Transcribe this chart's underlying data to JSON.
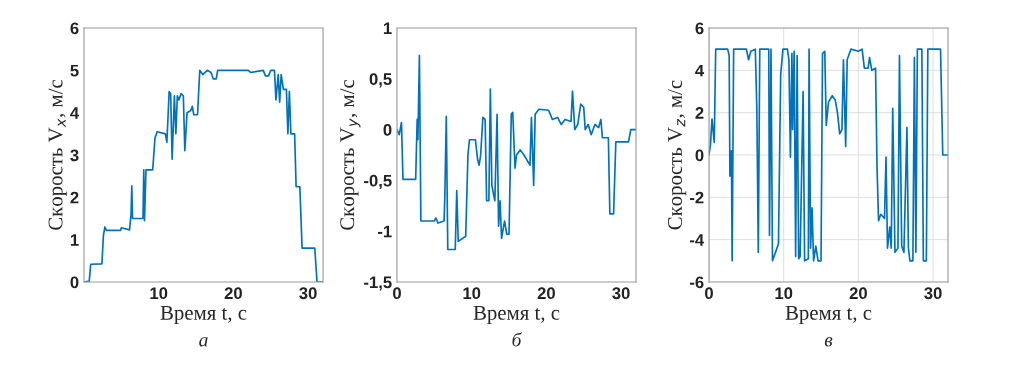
{
  "chart_data": [
    {
      "type": "line",
      "xlabel": "Время t, с",
      "ylabel": "Скорость V$_{x}$, м/с",
      "annotations": [
        "а"
      ],
      "xlim": [
        0,
        32
      ],
      "xticks": [
        10,
        20,
        30
      ],
      "ylim": [
        0,
        6
      ],
      "yticks": [
        0,
        1,
        2,
        3,
        4,
        5,
        6
      ],
      "grid": false,
      "series": [
        {
          "color": "#0072bd",
          "x": [
            0,
            0.7,
            0.9,
            2.4,
            2.6,
            2.8,
            3.0,
            4.9,
            5.0,
            6.1,
            6.3,
            6.4,
            6.5,
            7.9,
            8.0,
            8.1,
            8.3,
            9.2,
            9.5,
            9.8,
            10.9,
            11.1,
            11.4,
            11.6,
            11.8,
            12.1,
            12.3,
            12.5,
            12.7,
            13.0,
            13.3,
            13.5,
            13.8,
            14.3,
            14.5,
            14.7,
            15.2,
            15.5,
            15.9,
            16.5,
            17.0,
            17.3,
            17.7,
            17.9,
            22.0,
            22.3,
            24.0,
            24.3,
            24.7,
            25.0,
            25.5,
            25.7,
            26.0,
            26.2,
            26.4,
            26.7,
            27.1,
            27.3,
            27.5,
            27.7,
            28.2,
            28.4,
            28.9,
            29.2,
            30.9,
            31.2,
            32
          ],
          "values": [
            0,
            0.02,
            0.42,
            0.43,
            1.1,
            1.3,
            1.22,
            1.22,
            1.28,
            1.23,
            1.6,
            2.27,
            1.5,
            1.5,
            2.65,
            1.45,
            2.65,
            2.65,
            3.4,
            3.55,
            3.5,
            3.3,
            4.5,
            4.45,
            2.9,
            4.4,
            3.5,
            4.4,
            4.3,
            4.45,
            4.4,
            3.1,
            4.0,
            4.05,
            4.15,
            3.95,
            3.95,
            5.0,
            4.9,
            5.0,
            4.95,
            4.8,
            4.8,
            5.0,
            5.0,
            4.95,
            5.0,
            4.87,
            4.87,
            5.0,
            5.0,
            4.3,
            4.9,
            4.25,
            4.9,
            4.55,
            4.55,
            3.5,
            4.5,
            3.5,
            3.5,
            2.25,
            2.25,
            0.8,
            0.8,
            0.0,
            0.0
          ]
        }
      ]
    },
    {
      "type": "line",
      "xlabel": "Время t, с",
      "ylabel": "Скорость V$_{y}$, м/с",
      "annotations": [
        "б"
      ],
      "xlim": [
        0,
        32
      ],
      "xticks": [
        0,
        10,
        20,
        30
      ],
      "ylim": [
        -1.5,
        1
      ],
      "yticks": [
        {
          "value": -1.5,
          "label": "-1,5"
        },
        {
          "value": -1,
          "label": "-1"
        },
        {
          "value": -0.5,
          "label": "-0,5"
        },
        {
          "value": 0,
          "label": "0"
        },
        {
          "value": 0.5,
          "label": "0,5"
        },
        {
          "value": 1,
          "label": "1"
        }
      ],
      "grid": false,
      "series": [
        {
          "color": "#0072bd",
          "x": [
            0,
            0.3,
            0.6,
            0.8,
            2.5,
            2.7,
            2.8,
            3.0,
            3.2,
            5.0,
            5.2,
            5.5,
            6.3,
            6.4,
            6.6,
            6.8,
            7.8,
            8.0,
            8.2,
            9.2,
            9.5,
            9.7,
            10.5,
            10.8,
            11.0,
            11.2,
            11.5,
            11.8,
            12.0,
            12.3,
            12.5,
            12.7,
            13.1,
            13.4,
            13.6,
            13.8,
            14.0,
            14.4,
            14.7,
            15.0,
            15.3,
            15.5,
            15.8,
            16.0,
            16.5,
            17.0,
            17.8,
            18.0,
            18.3,
            18.5,
            19.0,
            20.3,
            20.8,
            21.5,
            22.0,
            22.5,
            23.3,
            23.5,
            23.8,
            24.2,
            24.6,
            25.0,
            25.2,
            25.6,
            26.0,
            26.5,
            27.0,
            27.3,
            27.5,
            28.3,
            28.5,
            29.0,
            29.3,
            31.0,
            31.3,
            32
          ],
          "values": [
            0,
            -0.05,
            0.07,
            -0.49,
            -0.49,
            0.1,
            -0.1,
            0.73,
            -0.9,
            -0.9,
            -0.87,
            -0.92,
            -0.9,
            -0.67,
            0.13,
            -1.18,
            -1.18,
            -0.6,
            -1.1,
            -1.05,
            -0.25,
            -0.1,
            -0.1,
            -0.3,
            -0.35,
            -0.25,
            0.12,
            0.1,
            -0.7,
            -0.7,
            0.4,
            -0.55,
            -0.7,
            0.15,
            -0.95,
            -0.7,
            -1.07,
            -0.9,
            -1.03,
            -1.03,
            0.15,
            0.17,
            -0.38,
            -0.25,
            -0.2,
            -0.25,
            -0.35,
            0.12,
            -0.55,
            0.15,
            0.2,
            0.19,
            0.1,
            0.12,
            0.05,
            0.1,
            0.08,
            0.38,
            0.0,
            0.05,
            0.25,
            0.22,
            0.0,
            0.05,
            -0.05,
            0.05,
            0.02,
            0.1,
            -0.08,
            -0.08,
            -0.83,
            -0.83,
            -0.12,
            -0.12,
            0.0,
            0.0
          ]
        }
      ]
    },
    {
      "type": "line",
      "xlabel": "Время t, с",
      "ylabel": "Скорость V$_{z}$, м/с",
      "annotations": [
        "в"
      ],
      "xlim": [
        0,
        32
      ],
      "xticks": [
        0,
        10,
        20,
        30
      ],
      "ylim": [
        -6,
        6
      ],
      "yticks": [
        -6,
        -4,
        -2,
        0,
        2,
        4,
        6
      ],
      "grid": true,
      "series": [
        {
          "color": "#0072bd",
          "x": [
            0,
            0.2,
            0.4,
            0.7,
            0.9,
            2.5,
            2.7,
            2.8,
            3.0,
            3.1,
            3.3,
            5.0,
            5.3,
            5.6,
            6.2,
            6.4,
            6.6,
            6.8,
            8.0,
            8.1,
            8.3,
            8.5,
            9.0,
            9.3,
            9.6,
            9.9,
            10.5,
            10.7,
            10.9,
            11.1,
            11.2,
            11.4,
            11.6,
            11.8,
            12.0,
            12.2,
            12.6,
            12.8,
            13.3,
            13.4,
            13.6,
            13.8,
            14.0,
            14.3,
            14.6,
            15.0,
            15.2,
            15.5,
            15.7,
            16.0,
            16.5,
            16.9,
            17.2,
            17.5,
            17.8,
            18.0,
            18.3,
            18.5,
            19.0,
            20.0,
            20.5,
            20.8,
            21.3,
            21.5,
            21.8,
            22.3,
            22.5,
            22.7,
            23.0,
            23.5,
            23.7,
            23.9,
            24.2,
            24.4,
            24.6,
            24.9,
            25.3,
            25.5,
            25.8,
            26.1,
            26.5,
            26.7,
            26.9,
            27.3,
            27.5,
            27.7,
            27.9,
            28.5,
            28.7,
            29.1,
            29.3,
            31.0,
            31.3,
            32
          ],
          "values": [
            0,
            0.5,
            1.7,
            0.6,
            5.0,
            5.0,
            4.7,
            -1.0,
            0.2,
            -5.0,
            5.0,
            5.0,
            4.5,
            4.9,
            5.0,
            2.3,
            -4.6,
            5.0,
            5.0,
            -3.8,
            5.0,
            -5.0,
            -4.5,
            -4.2,
            3.8,
            5.0,
            5.0,
            4.5,
            -0.1,
            4.8,
            1.2,
            4.9,
            -4.8,
            4.7,
            -4.9,
            -4.8,
            3.0,
            -5.0,
            -4.9,
            5.0,
            -4.4,
            -2.5,
            -5.0,
            -4.3,
            -5.0,
            -5.0,
            4.8,
            4.9,
            1.4,
            2.5,
            2.8,
            2.6,
            2.0,
            1.0,
            1.2,
            4.5,
            0.4,
            4.5,
            5.0,
            4.9,
            5.0,
            4.1,
            4.1,
            4.6,
            4.0,
            4.1,
            -0.6,
            -3.1,
            -2.8,
            -3.0,
            -0.1,
            -4.4,
            -3.4,
            -4.4,
            2.2,
            -4.6,
            -4.4,
            4.7,
            -4.3,
            -4.6,
            1.3,
            -4.4,
            -5.0,
            -5.0,
            4.6,
            -4.6,
            5.0,
            5.0,
            -5.0,
            -5.0,
            5.0,
            5.0,
            0.0,
            0.0
          ]
        }
      ]
    }
  ]
}
